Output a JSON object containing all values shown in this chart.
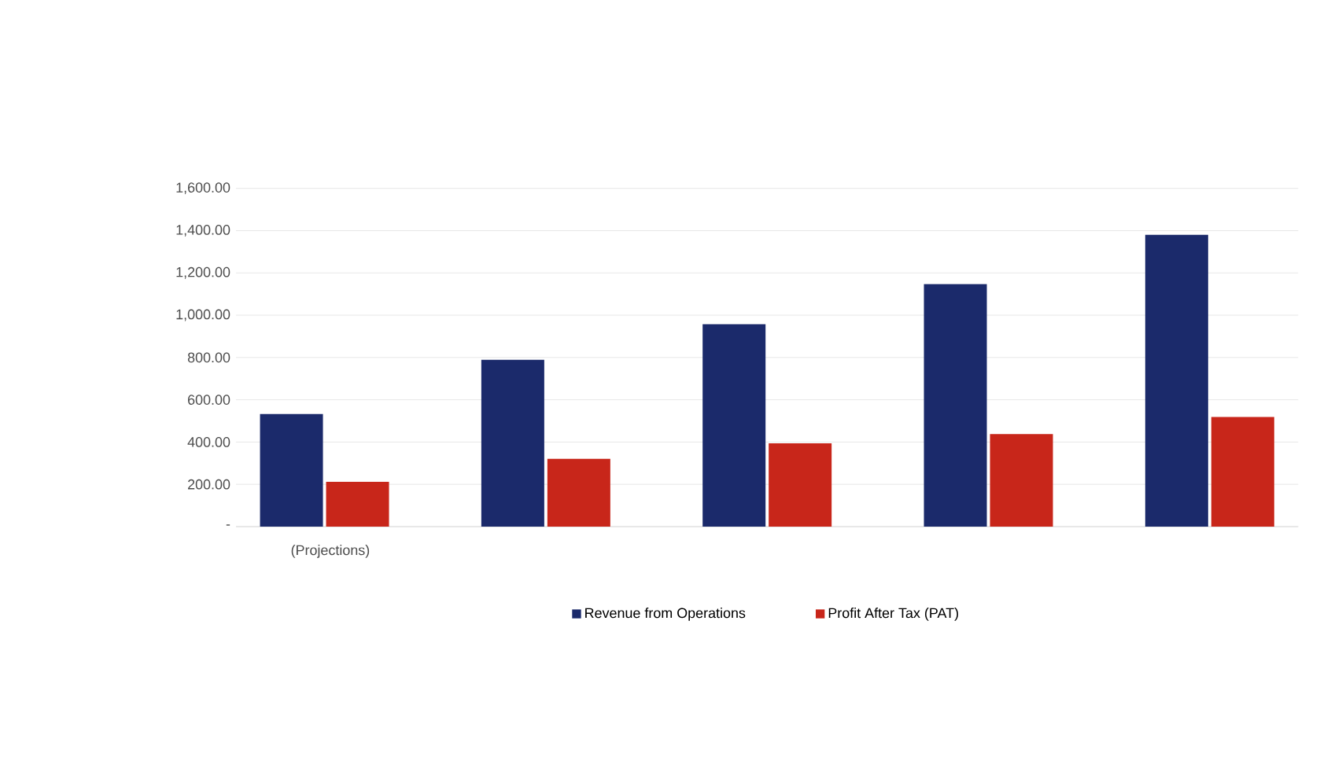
{
  "chart_data": {
    "type": "bar",
    "categories": [
      "(Projections)",
      null,
      null,
      null,
      null
    ],
    "series": [
      {
        "name": "Revenue from Operations",
        "color": "#1b2a6b",
        "values": [
          533,
          789,
          957,
          1147,
          1380
        ]
      },
      {
        "name": "Profit After Tax (PAT)",
        "color": "#c8261a",
        "values": [
          212,
          321,
          394,
          438,
          519
        ]
      }
    ],
    "ylim": [
      0,
      1600
    ],
    "yticks": [
      {
        "value": 0,
        "label": "-"
      },
      {
        "value": 200,
        "label": "200.00"
      },
      {
        "value": 400,
        "label": "400.00"
      },
      {
        "value": 600,
        "label": "600.00"
      },
      {
        "value": 800,
        "label": "800.00"
      },
      {
        "value": 1000,
        "label": "1,000.00"
      },
      {
        "value": 1200,
        "label": "1,200.00"
      },
      {
        "value": 1400,
        "label": "1,400.00"
      },
      {
        "value": 1600,
        "label": "1,600.00"
      }
    ],
    "grid": "y",
    "legend": "bottom"
  }
}
